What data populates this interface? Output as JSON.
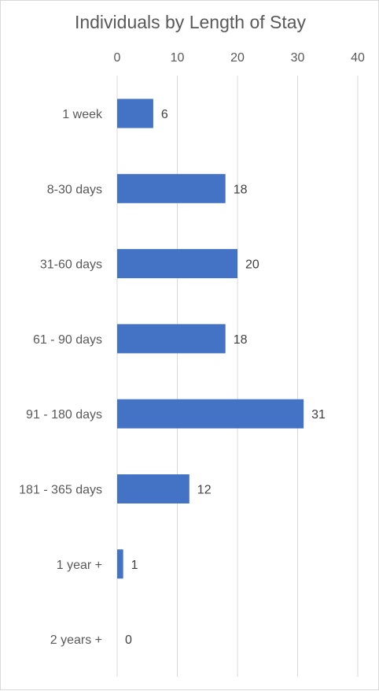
{
  "chart_data": {
    "type": "bar",
    "orientation": "horizontal",
    "title": "Individuals by Length of Stay",
    "categories": [
      "1 week",
      "8-30 days",
      "31-60 days",
      "61 - 90 days",
      "91 - 180 days",
      "181 - 365 days",
      "1 year +",
      "2 years +"
    ],
    "values": [
      6,
      18,
      20,
      18,
      31,
      12,
      1,
      0
    ],
    "xlim": [
      0,
      40
    ],
    "xticks": [
      0,
      10,
      20,
      30,
      40
    ],
    "xaxis_position": "top",
    "grid": true,
    "legend": "none",
    "bar_color": "#4472C4"
  }
}
